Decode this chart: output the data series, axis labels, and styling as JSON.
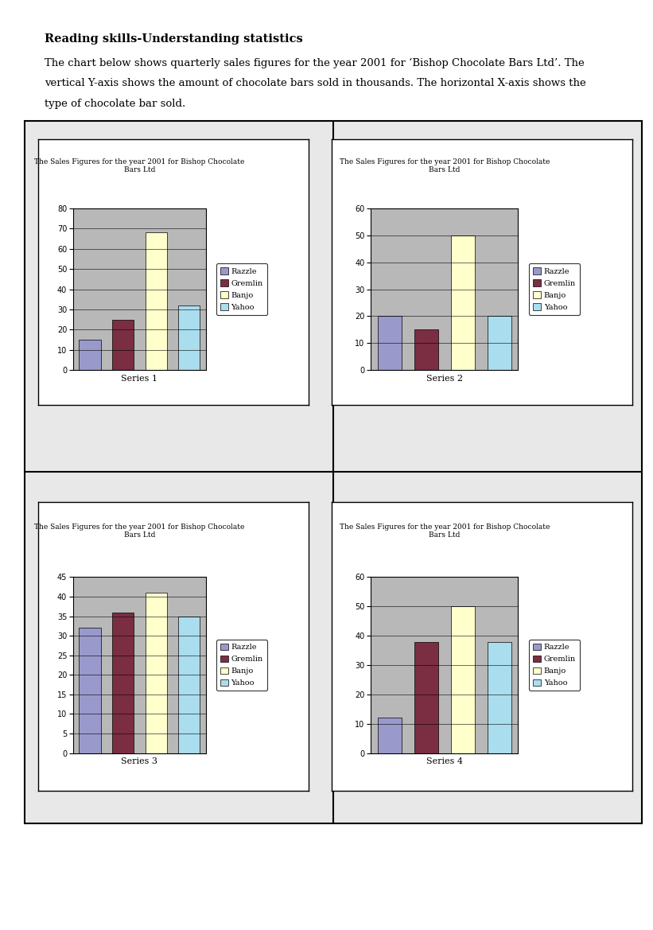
{
  "title_text": "Reading skills-Understanding statistics",
  "paragraph_lines": [
    "The chart below shows quarterly sales figures for the year 2001 for ‘Bishop Chocolate Bars Ltd’. The",
    "vertical Y-axis shows the amount of chocolate bars sold in thousands. The horizontal X-axis shows the",
    "type of chocolate bar sold."
  ],
  "chart_title": "The Sales Figures for the year 2001 for Bishop Chocolate\nBars Ltd",
  "legend_labels": [
    "Razzle",
    "Gremlin",
    "Banjo",
    "Yahoo"
  ],
  "bar_colors": [
    "#9999cc",
    "#7b2d42",
    "#ffffcc",
    "#aaddee"
  ],
  "series": [
    {
      "name": "Series 1",
      "values": [
        15,
        25,
        68,
        32
      ],
      "ylim": [
        0,
        80
      ],
      "yticks": [
        0,
        10,
        20,
        30,
        40,
        50,
        60,
        70,
        80
      ]
    },
    {
      "name": "Series 2",
      "values": [
        20,
        15,
        50,
        20
      ],
      "ylim": [
        0,
        60
      ],
      "yticks": [
        0,
        10,
        20,
        30,
        40,
        50,
        60
      ]
    },
    {
      "name": "Series 3",
      "values": [
        32,
        36,
        41,
        35
      ],
      "ylim": [
        0,
        45
      ],
      "yticks": [
        0,
        5,
        10,
        15,
        20,
        25,
        30,
        35,
        40,
        45
      ]
    },
    {
      "name": "Series 4",
      "values": [
        12,
        38,
        50,
        38
      ],
      "ylim": [
        0,
        60
      ],
      "yticks": [
        0,
        10,
        20,
        30,
        40,
        50,
        60
      ]
    }
  ],
  "page_bg": "#ffffff",
  "chart_bg": "#b8b8b8",
  "chart_inner_bg": "#ffffff",
  "outer_box_bg": "#e8e8e8"
}
